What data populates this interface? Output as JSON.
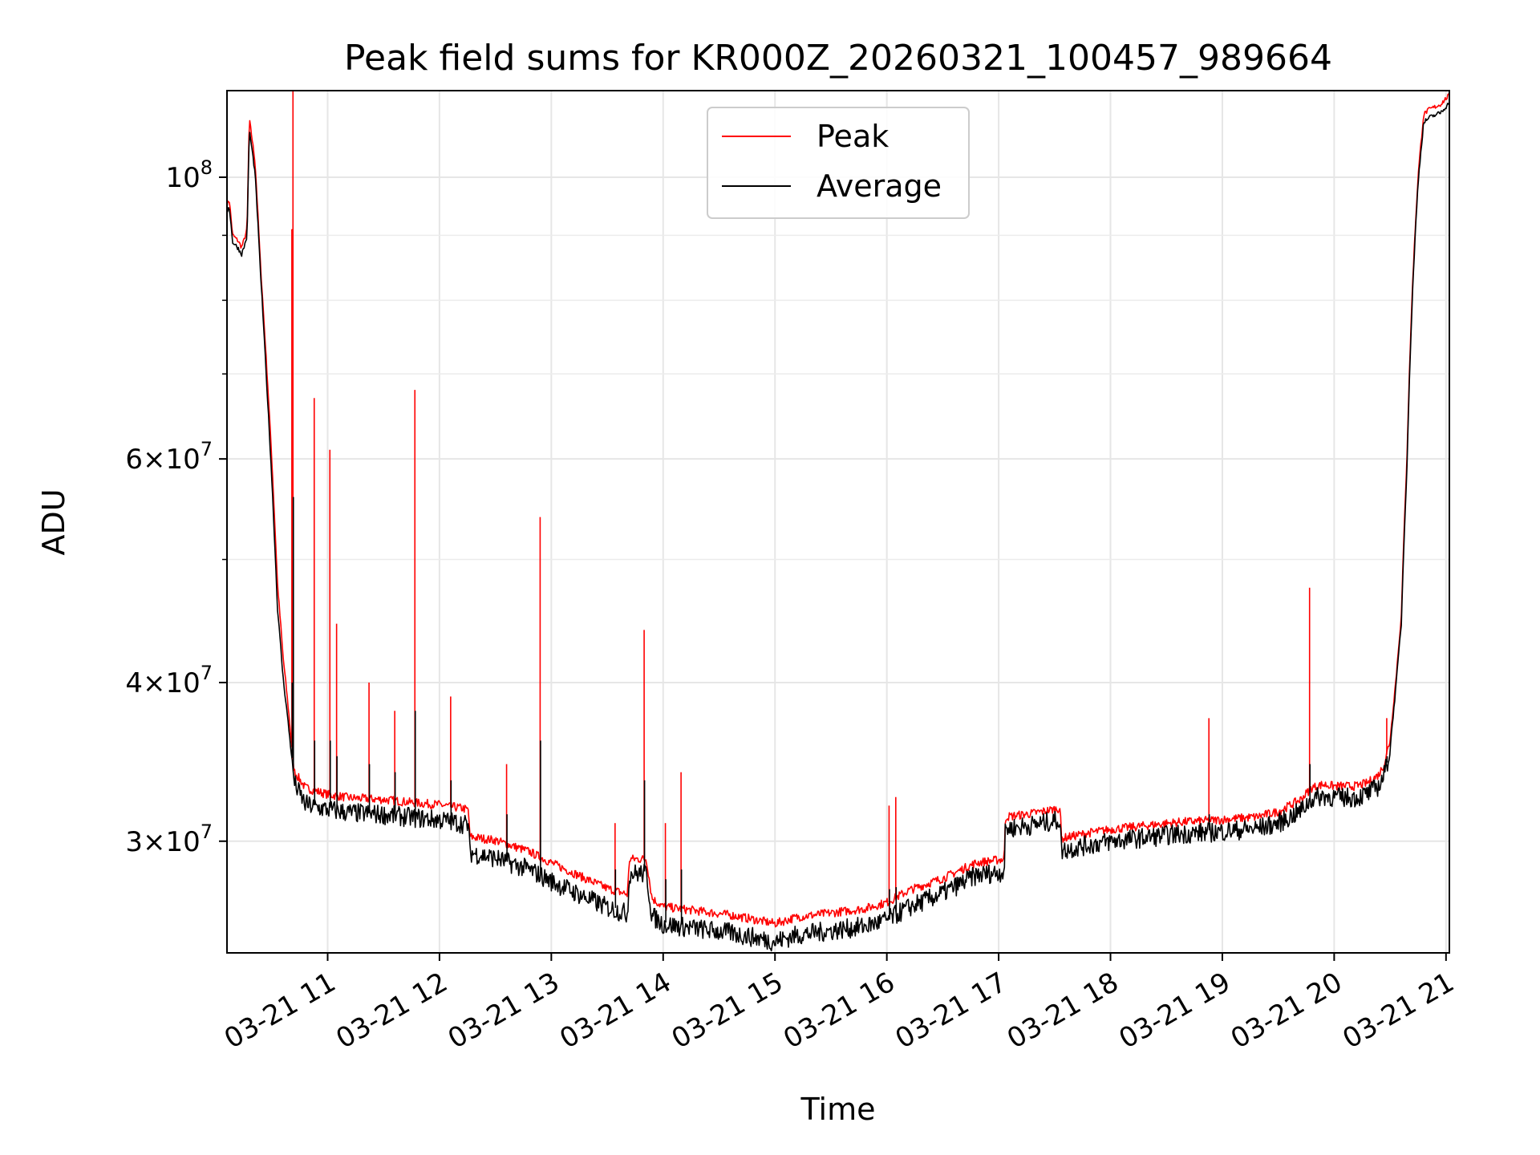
{
  "chart_data": {
    "type": "line",
    "title": "Peak field sums for KR000Z_20260321_100457_989664",
    "xlabel": "Time",
    "ylabel": "ADU",
    "yscale": "log",
    "xlim_hours": [
      10.1,
      21.03
    ],
    "ylim": [
      24500000,
      117000000
    ],
    "grid": true,
    "legend_position": "top-center",
    "x_ticks": [
      {
        "hour": 11,
        "label": "03-21 11"
      },
      {
        "hour": 12,
        "label": "03-21 12"
      },
      {
        "hour": 13,
        "label": "03-21 13"
      },
      {
        "hour": 14,
        "label": "03-21 14"
      },
      {
        "hour": 15,
        "label": "03-21 15"
      },
      {
        "hour": 16,
        "label": "03-21 16"
      },
      {
        "hour": 17,
        "label": "03-21 17"
      },
      {
        "hour": 18,
        "label": "03-21 18"
      },
      {
        "hour": 19,
        "label": "03-21 19"
      },
      {
        "hour": 20,
        "label": "03-21 20"
      },
      {
        "hour": 21,
        "label": "03-21 21"
      }
    ],
    "y_major_ticks": [
      {
        "value": 30000000,
        "mantissa": "3",
        "exp": "7"
      },
      {
        "value": 40000000,
        "mantissa": "4",
        "exp": "7"
      },
      {
        "value": 60000000,
        "mantissa": "6",
        "exp": "7"
      },
      {
        "value": 100000000,
        "mantissa": "",
        "exp": "8"
      }
    ],
    "y_minor_ticks": [
      50000000,
      70000000,
      80000000,
      90000000
    ],
    "series": [
      {
        "name": "Peak",
        "color": "#ff0000",
        "x_hours": [
          10.1,
          10.12,
          10.15,
          10.2,
          10.23,
          10.25,
          10.28,
          10.3,
          10.35,
          10.4,
          10.45,
          10.5,
          10.55,
          10.6,
          10.65,
          10.7,
          10.75,
          10.8,
          10.9,
          11.0,
          11.2,
          11.5,
          11.8,
          12.0,
          12.2,
          12.26,
          12.27,
          12.5,
          12.8,
          13.0,
          13.3,
          13.5,
          13.68,
          13.7,
          13.85,
          13.9,
          14.0,
          14.3,
          14.6,
          14.9,
          15.0,
          15.2,
          15.5,
          15.8,
          16.0,
          16.2,
          16.5,
          16.8,
          17.05,
          17.06,
          17.3,
          17.55,
          17.56,
          17.8,
          18.0,
          18.3,
          18.6,
          18.9,
          19.1,
          19.3,
          19.5,
          19.7,
          19.8,
          19.9,
          20.0,
          20.2,
          20.3,
          20.4,
          20.45,
          20.5,
          20.55,
          20.6,
          20.65,
          20.7,
          20.75,
          20.8,
          20.85,
          20.9,
          20.95,
          21.03
        ],
        "values": [
          95000000,
          96000000,
          90000000,
          89000000,
          88000000,
          89000000,
          91000000,
          111000000,
          103000000,
          85000000,
          72000000,
          60000000,
          48000000,
          42000000,
          38000000,
          34000000,
          33500000,
          33000000,
          32800000,
          32600000,
          32400000,
          32300000,
          32100000,
          32000000,
          31800000,
          31700000,
          30200000,
          30000000,
          29400000,
          28800000,
          28000000,
          27500000,
          27200000,
          29000000,
          29000000,
          27000000,
          26600000,
          26400000,
          26200000,
          25900000,
          25800000,
          26100000,
          26300000,
          26500000,
          26800000,
          27400000,
          28000000,
          28800000,
          29000000,
          31300000,
          31500000,
          31800000,
          30100000,
          30400000,
          30600000,
          30800000,
          31000000,
          31100000,
          31200000,
          31300000,
          31600000,
          32300000,
          33000000,
          33200000,
          33100000,
          33100000,
          33300000,
          33800000,
          34500000,
          36000000,
          40000000,
          45000000,
          60000000,
          82000000,
          100000000,
          112000000,
          113000000,
          113500000,
          114000000,
          116000000
        ]
      },
      {
        "name": "Average",
        "color": "#000000",
        "x_hours": [
          10.1,
          10.12,
          10.15,
          10.2,
          10.23,
          10.25,
          10.28,
          10.3,
          10.35,
          10.4,
          10.45,
          10.5,
          10.55,
          10.6,
          10.65,
          10.7,
          10.75,
          10.8,
          10.9,
          11.0,
          11.2,
          11.5,
          11.8,
          12.0,
          12.2,
          12.26,
          12.27,
          12.5,
          12.8,
          13.0,
          13.3,
          13.5,
          13.68,
          13.7,
          13.85,
          13.9,
          14.0,
          14.3,
          14.6,
          14.9,
          15.0,
          15.2,
          15.5,
          15.8,
          16.0,
          16.2,
          16.5,
          16.8,
          17.05,
          17.06,
          17.3,
          17.55,
          17.56,
          17.8,
          18.0,
          18.3,
          18.6,
          18.9,
          19.1,
          19.3,
          19.5,
          19.7,
          19.8,
          19.9,
          20.0,
          20.2,
          20.3,
          20.4,
          20.45,
          20.5,
          20.55,
          20.6,
          20.65,
          20.7,
          20.75,
          20.8,
          20.85,
          20.9,
          20.95,
          21.03
        ],
        "values": [
          94000000,
          95000000,
          89000000,
          88000000,
          87000000,
          88000000,
          90000000,
          109000000,
          101000000,
          84000000,
          70000000,
          58000000,
          46000000,
          40500000,
          37000000,
          33500000,
          32800000,
          32200000,
          32000000,
          31900000,
          31700000,
          31600000,
          31400000,
          31300000,
          31100000,
          31000000,
          29500000,
          29200000,
          28600000,
          28000000,
          27200000,
          26700000,
          26400000,
          28400000,
          28400000,
          26300000,
          25900000,
          25700000,
          25500000,
          25200000,
          25100000,
          25400000,
          25600000,
          25800000,
          26100000,
          26700000,
          27400000,
          28300000,
          28500000,
          30800000,
          31000000,
          31300000,
          29600000,
          29900000,
          30100000,
          30300000,
          30500000,
          30600000,
          30700000,
          30800000,
          31100000,
          31800000,
          32500000,
          32700000,
          32600000,
          32600000,
          32800000,
          33300000,
          34000000,
          35500000,
          39500000,
          44500000,
          59000000,
          81000000,
          99000000,
          110500000,
          111500000,
          112000000,
          112500000,
          114500000
        ]
      }
    ],
    "spikes": [
      {
        "hour": 10.69,
        "peak": 117000000,
        "avg": 56000000
      },
      {
        "hour": 10.68,
        "peak": 91000000,
        "avg": 40000000
      },
      {
        "hour": 10.88,
        "peak": 67000000,
        "avg": 36000000
      },
      {
        "hour": 11.02,
        "peak": 61000000,
        "avg": 36000000
      },
      {
        "hour": 11.08,
        "peak": 44500000,
        "avg": 35000000
      },
      {
        "hour": 11.37,
        "peak": 40000000,
        "avg": 34500000
      },
      {
        "hour": 11.6,
        "peak": 38000000,
        "avg": 34000000
      },
      {
        "hour": 11.78,
        "peak": 68000000,
        "avg": 38000000
      },
      {
        "hour": 12.1,
        "peak": 39000000,
        "avg": 33500000
      },
      {
        "hour": 12.6,
        "peak": 34500000,
        "avg": 31500000
      },
      {
        "hour": 12.9,
        "peak": 54000000,
        "avg": 36000000
      },
      {
        "hour": 13.57,
        "peak": 31000000,
        "avg": 28500000
      },
      {
        "hour": 13.83,
        "peak": 44000000,
        "avg": 33500000
      },
      {
        "hour": 14.02,
        "peak": 31000000,
        "avg": 28000000
      },
      {
        "hour": 14.16,
        "peak": 34000000,
        "avg": 28500000
      },
      {
        "hour": 16.02,
        "peak": 32000000,
        "avg": 27500000
      },
      {
        "hour": 16.08,
        "peak": 32500000,
        "avg": 27600000
      },
      {
        "hour": 18.88,
        "peak": 37500000,
        "avg": 31500000
      },
      {
        "hour": 19.78,
        "peak": 47500000,
        "avg": 34500000
      },
      {
        "hour": 20.47,
        "peak": 37500000,
        "avg": 35000000
      }
    ]
  }
}
